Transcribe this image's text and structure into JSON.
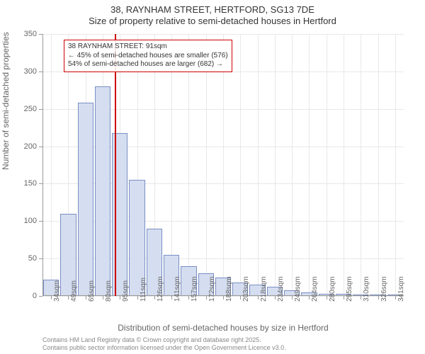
{
  "chart": {
    "type": "histogram",
    "title_main": "38, RAYNHAM STREET, HERTFORD, SG13 7DE",
    "title_sub": "Size of property relative to semi-detached houses in Hertford",
    "y_label": "Number of semi-detached properties",
    "x_label": "Distribution of semi-detached houses by size in Hertford",
    "ylim": [
      0,
      350
    ],
    "ytick_step": 50,
    "yticks": [
      0,
      50,
      100,
      150,
      200,
      250,
      300,
      350
    ],
    "x_categories": [
      "34sqm",
      "49sqm",
      "65sqm",
      "80sqm",
      "95sqm",
      "111sqm",
      "126sqm",
      "141sqm",
      "157sqm",
      "172sqm",
      "188sqm",
      "203sqm",
      "218sqm",
      "234sqm",
      "249sqm",
      "264sqm",
      "280sqm",
      "295sqm",
      "310sqm",
      "326sqm",
      "341sqm"
    ],
    "values": [
      22,
      110,
      258,
      280,
      218,
      155,
      90,
      55,
      40,
      30,
      25,
      18,
      15,
      12,
      8,
      5,
      3,
      3,
      2,
      2,
      0
    ],
    "bar_fill_color": "#d5ddf0",
    "bar_border_color": "#7a8fc4",
    "background_color": "#ffffff",
    "grid_color": "#e8e8e8",
    "axis_line_color": "#999999",
    "tick_label_color": "#666666",
    "title_fontsize": 13,
    "label_fontsize": 12,
    "tick_fontsize": 11,
    "xtick_fontsize": 10,
    "marker": {
      "position_sqm": 91,
      "line_color": "#cc0000",
      "line_width": 2
    },
    "annotation": {
      "border_color": "#cc0000",
      "bg_color": "rgba(255,255,255,0.9)",
      "line1": "38 RAYNHAM STREET: 91sqm",
      "line2": "← 45% of semi-detached houses are smaller (576)",
      "line3": "54% of semi-detached houses are larger (682) →",
      "fontsize": 10
    },
    "footer": {
      "line1": "Contains HM Land Registry data © Crown copyright and database right 2025.",
      "line2": "Contains public sector information licensed under the Open Government Licence v3.0.",
      "fontsize": 9,
      "color": "#888888"
    }
  }
}
